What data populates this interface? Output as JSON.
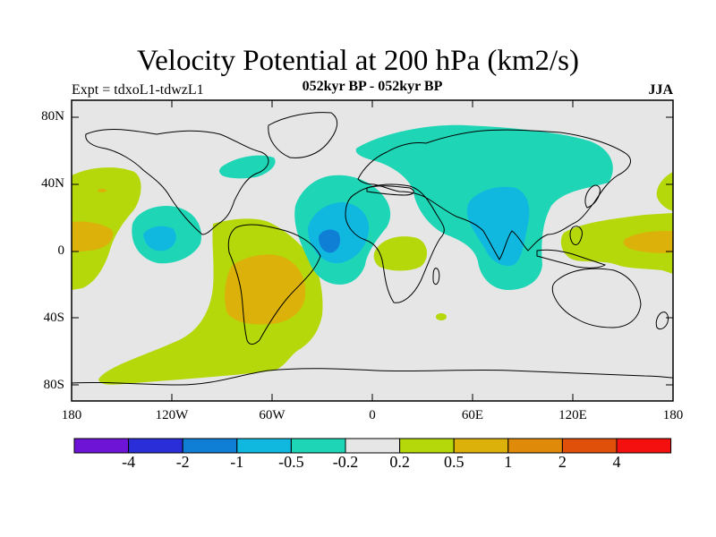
{
  "title": "Velocity Potential at 200 hPa (km2/s)",
  "left_title": "Expt = tdxoL1-tdwzL1",
  "center_title": "052kyr BP - 052kyr BP",
  "right_title": "JJA",
  "lat_labels": [
    "80N",
    "40N",
    "0",
    "40S",
    "80S"
  ],
  "lon_labels": [
    "180",
    "120W",
    "60W",
    "0",
    "60E",
    "120E",
    "180"
  ],
  "colorbar": {
    "colors": [
      "#6e14d6",
      "#2a2ed8",
      "#0f7fd6",
      "#10b8e0",
      "#1ed6b6",
      "#e6e6e6",
      "#b4d80a",
      "#dcb10a",
      "#e08a0a",
      "#e0500a",
      "#f51010"
    ],
    "labels": [
      "-4",
      "-2",
      "-1",
      "-0.5",
      "-0.2",
      "0.2",
      "0.5",
      "1",
      "2",
      "4"
    ]
  },
  "colors": {
    "background": "#e6e6e6",
    "neg_02": "#1ed6b6",
    "neg_05": "#10b8e0",
    "neg_1": "#0f7fd6",
    "pos_02": "#b4d80a",
    "pos_05": "#dcb10a",
    "pos_1": "#e08a0a"
  }
}
